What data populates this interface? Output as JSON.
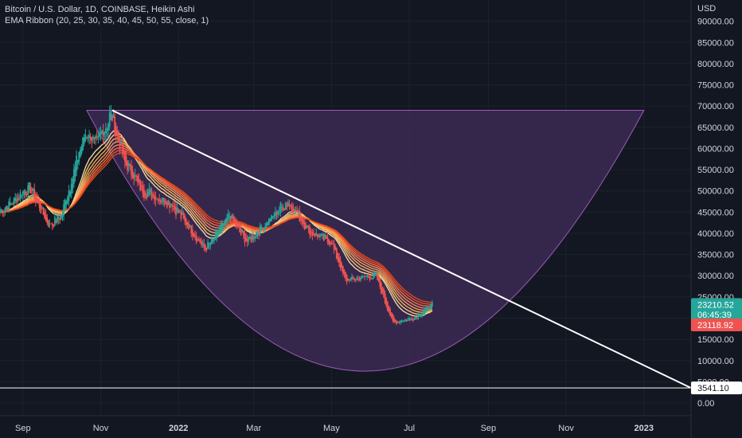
{
  "legend": {
    "line1": "Bitcoin / U.S. Dollar, 1D, COINBASE, Heikin Ashi",
    "line2": "EMA Ribbon (20, 25, 30, 35, 40, 45, 50, 55, close, 1)"
  },
  "colors": {
    "background": "#131722",
    "up": "#26a69a",
    "down": "#ef5350",
    "shape_fill": "#3b2a52",
    "shape_stroke": "#9c59b6",
    "trendline": "#ffffff",
    "ribbon": [
      "#ffe0a0",
      "#ffcc80",
      "#ffb74d",
      "#ffa060",
      "#ff8a50",
      "#ff7043",
      "#f4511e",
      "#e64a19"
    ]
  },
  "chart_data": {
    "type": "candlestick",
    "currency_label": "USD",
    "y_ticks": [
      "90000.00",
      "85000.00",
      "80000.00",
      "75000.00",
      "70000.00",
      "65000.00",
      "60000.00",
      "55000.00",
      "50000.00",
      "45000.00",
      "40000.00",
      "35000.00",
      "30000.00",
      "25000.00",
      "20000.00",
      "15000.00",
      "10000.00",
      "5000.00",
      "0.00"
    ],
    "ylim": [
      -3000,
      95000
    ],
    "x_ticks": [
      {
        "label": "Sep",
        "date": "2021-09-01",
        "bold": false
      },
      {
        "label": "Nov",
        "date": "2021-11-01",
        "bold": false
      },
      {
        "label": "2022",
        "date": "2022-01-01",
        "bold": true
      },
      {
        "label": "Mar",
        "date": "2022-03-01",
        "bold": false
      },
      {
        "label": "May",
        "date": "2022-05-01",
        "bold": false
      },
      {
        "label": "Jul",
        "date": "2022-07-01",
        "bold": false
      },
      {
        "label": "Sep",
        "date": "2022-09-01",
        "bold": false
      },
      {
        "label": "Nov",
        "date": "2022-11-01",
        "bold": false
      },
      {
        "label": "2023",
        "date": "2023-01-01",
        "bold": true
      }
    ],
    "xlim": [
      "2021-08-14",
      "2023-02-07"
    ],
    "price_path": [
      {
        "date": "2021-08-14",
        "price": 45000
      },
      {
        "date": "2021-09-06",
        "price": 51000
      },
      {
        "date": "2021-09-21",
        "price": 42000
      },
      {
        "date": "2021-10-01",
        "price": 44000
      },
      {
        "date": "2021-10-20",
        "price": 64000
      },
      {
        "date": "2021-10-29",
        "price": 61000
      },
      {
        "date": "2021-11-09",
        "price": 68000
      },
      {
        "date": "2021-11-20",
        "price": 57000
      },
      {
        "date": "2021-12-04",
        "price": 50000
      },
      {
        "date": "2021-12-27",
        "price": 47000
      },
      {
        "date": "2022-01-22",
        "price": 36000
      },
      {
        "date": "2022-02-10",
        "price": 44000
      },
      {
        "date": "2022-02-24",
        "price": 38000
      },
      {
        "date": "2022-03-28",
        "price": 47500
      },
      {
        "date": "2022-04-15",
        "price": 40000
      },
      {
        "date": "2022-05-01",
        "price": 38000
      },
      {
        "date": "2022-05-12",
        "price": 29000
      },
      {
        "date": "2022-06-05",
        "price": 30000
      },
      {
        "date": "2022-06-18",
        "price": 19000
      },
      {
        "date": "2022-07-05",
        "price": 20000
      },
      {
        "date": "2022-07-19",
        "price": 23300
      }
    ],
    "trendline": {
      "start": {
        "date": "2021-11-10",
        "price": 69000
      },
      "end": {
        "date": "2023-02-07",
        "price": 3541.1
      }
    },
    "bowl": {
      "left": {
        "date": "2021-10-21",
        "price": 69000
      },
      "right": {
        "date": "2023-01-01",
        "price": 69000
      },
      "bottom": {
        "date": "2022-05-27",
        "price": 7500
      }
    },
    "horizontal_line": {
      "price": 3541.1
    },
    "badges": [
      {
        "text": "23210.52",
        "price": 23210.52,
        "color": "#26a69a"
      },
      {
        "text": "06:45:39",
        "price": 20800,
        "color": "#26a69a"
      },
      {
        "text": "23118.92",
        "price": 18400,
        "color": "#ef5350"
      },
      {
        "text": "3541.10",
        "price": 3541.1,
        "color": "#ffffff"
      }
    ]
  }
}
